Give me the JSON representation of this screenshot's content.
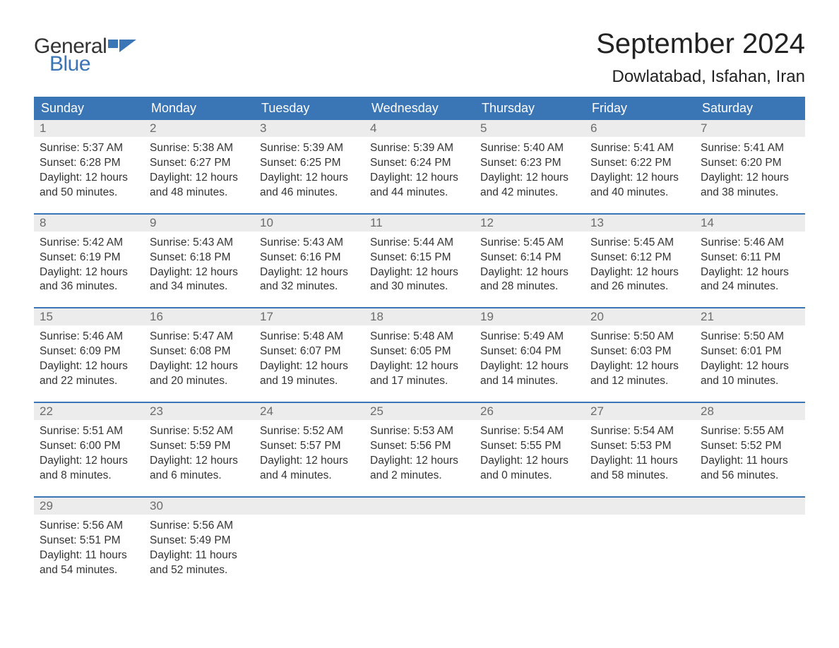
{
  "brand": {
    "word1": "General",
    "word2": "Blue",
    "accent_color": "#3a75b5",
    "text_color": "#333333"
  },
  "title": "September 2024",
  "location": "Dowlatabad, Isfahan, Iran",
  "layout": {
    "header_bg": "#3a75b5",
    "header_text_color": "#ffffff",
    "daynum_bg": "#ececec",
    "daynum_color": "#6b6b6b",
    "body_text_color": "#333333",
    "week_border_color": "#3a75b5",
    "font_family": "Arial",
    "title_fontsize": 40,
    "location_fontsize": 24,
    "weekday_fontsize": 18,
    "body_fontsize": 15.5
  },
  "weekdays": [
    "Sunday",
    "Monday",
    "Tuesday",
    "Wednesday",
    "Thursday",
    "Friday",
    "Saturday"
  ],
  "days": [
    {
      "n": "1",
      "sunrise": "Sunrise: 5:37 AM",
      "sunset": "Sunset: 6:28 PM",
      "d1": "Daylight: 12 hours",
      "d2": "and 50 minutes."
    },
    {
      "n": "2",
      "sunrise": "Sunrise: 5:38 AM",
      "sunset": "Sunset: 6:27 PM",
      "d1": "Daylight: 12 hours",
      "d2": "and 48 minutes."
    },
    {
      "n": "3",
      "sunrise": "Sunrise: 5:39 AM",
      "sunset": "Sunset: 6:25 PM",
      "d1": "Daylight: 12 hours",
      "d2": "and 46 minutes."
    },
    {
      "n": "4",
      "sunrise": "Sunrise: 5:39 AM",
      "sunset": "Sunset: 6:24 PM",
      "d1": "Daylight: 12 hours",
      "d2": "and 44 minutes."
    },
    {
      "n": "5",
      "sunrise": "Sunrise: 5:40 AM",
      "sunset": "Sunset: 6:23 PM",
      "d1": "Daylight: 12 hours",
      "d2": "and 42 minutes."
    },
    {
      "n": "6",
      "sunrise": "Sunrise: 5:41 AM",
      "sunset": "Sunset: 6:22 PM",
      "d1": "Daylight: 12 hours",
      "d2": "and 40 minutes."
    },
    {
      "n": "7",
      "sunrise": "Sunrise: 5:41 AM",
      "sunset": "Sunset: 6:20 PM",
      "d1": "Daylight: 12 hours",
      "d2": "and 38 minutes."
    },
    {
      "n": "8",
      "sunrise": "Sunrise: 5:42 AM",
      "sunset": "Sunset: 6:19 PM",
      "d1": "Daylight: 12 hours",
      "d2": "and 36 minutes."
    },
    {
      "n": "9",
      "sunrise": "Sunrise: 5:43 AM",
      "sunset": "Sunset: 6:18 PM",
      "d1": "Daylight: 12 hours",
      "d2": "and 34 minutes."
    },
    {
      "n": "10",
      "sunrise": "Sunrise: 5:43 AM",
      "sunset": "Sunset: 6:16 PM",
      "d1": "Daylight: 12 hours",
      "d2": "and 32 minutes."
    },
    {
      "n": "11",
      "sunrise": "Sunrise: 5:44 AM",
      "sunset": "Sunset: 6:15 PM",
      "d1": "Daylight: 12 hours",
      "d2": "and 30 minutes."
    },
    {
      "n": "12",
      "sunrise": "Sunrise: 5:45 AM",
      "sunset": "Sunset: 6:14 PM",
      "d1": "Daylight: 12 hours",
      "d2": "and 28 minutes."
    },
    {
      "n": "13",
      "sunrise": "Sunrise: 5:45 AM",
      "sunset": "Sunset: 6:12 PM",
      "d1": "Daylight: 12 hours",
      "d2": "and 26 minutes."
    },
    {
      "n": "14",
      "sunrise": "Sunrise: 5:46 AM",
      "sunset": "Sunset: 6:11 PM",
      "d1": "Daylight: 12 hours",
      "d2": "and 24 minutes."
    },
    {
      "n": "15",
      "sunrise": "Sunrise: 5:46 AM",
      "sunset": "Sunset: 6:09 PM",
      "d1": "Daylight: 12 hours",
      "d2": "and 22 minutes."
    },
    {
      "n": "16",
      "sunrise": "Sunrise: 5:47 AM",
      "sunset": "Sunset: 6:08 PM",
      "d1": "Daylight: 12 hours",
      "d2": "and 20 minutes."
    },
    {
      "n": "17",
      "sunrise": "Sunrise: 5:48 AM",
      "sunset": "Sunset: 6:07 PM",
      "d1": "Daylight: 12 hours",
      "d2": "and 19 minutes."
    },
    {
      "n": "18",
      "sunrise": "Sunrise: 5:48 AM",
      "sunset": "Sunset: 6:05 PM",
      "d1": "Daylight: 12 hours",
      "d2": "and 17 minutes."
    },
    {
      "n": "19",
      "sunrise": "Sunrise: 5:49 AM",
      "sunset": "Sunset: 6:04 PM",
      "d1": "Daylight: 12 hours",
      "d2": "and 14 minutes."
    },
    {
      "n": "20",
      "sunrise": "Sunrise: 5:50 AM",
      "sunset": "Sunset: 6:03 PM",
      "d1": "Daylight: 12 hours",
      "d2": "and 12 minutes."
    },
    {
      "n": "21",
      "sunrise": "Sunrise: 5:50 AM",
      "sunset": "Sunset: 6:01 PM",
      "d1": "Daylight: 12 hours",
      "d2": "and 10 minutes."
    },
    {
      "n": "22",
      "sunrise": "Sunrise: 5:51 AM",
      "sunset": "Sunset: 6:00 PM",
      "d1": "Daylight: 12 hours",
      "d2": "and 8 minutes."
    },
    {
      "n": "23",
      "sunrise": "Sunrise: 5:52 AM",
      "sunset": "Sunset: 5:59 PM",
      "d1": "Daylight: 12 hours",
      "d2": "and 6 minutes."
    },
    {
      "n": "24",
      "sunrise": "Sunrise: 5:52 AM",
      "sunset": "Sunset: 5:57 PM",
      "d1": "Daylight: 12 hours",
      "d2": "and 4 minutes."
    },
    {
      "n": "25",
      "sunrise": "Sunrise: 5:53 AM",
      "sunset": "Sunset: 5:56 PM",
      "d1": "Daylight: 12 hours",
      "d2": "and 2 minutes."
    },
    {
      "n": "26",
      "sunrise": "Sunrise: 5:54 AM",
      "sunset": "Sunset: 5:55 PM",
      "d1": "Daylight: 12 hours",
      "d2": "and 0 minutes."
    },
    {
      "n": "27",
      "sunrise": "Sunrise: 5:54 AM",
      "sunset": "Sunset: 5:53 PM",
      "d1": "Daylight: 11 hours",
      "d2": "and 58 minutes."
    },
    {
      "n": "28",
      "sunrise": "Sunrise: 5:55 AM",
      "sunset": "Sunset: 5:52 PM",
      "d1": "Daylight: 11 hours",
      "d2": "and 56 minutes."
    },
    {
      "n": "29",
      "sunrise": "Sunrise: 5:56 AM",
      "sunset": "Sunset: 5:51 PM",
      "d1": "Daylight: 11 hours",
      "d2": "and 54 minutes."
    },
    {
      "n": "30",
      "sunrise": "Sunrise: 5:56 AM",
      "sunset": "Sunset: 5:49 PM",
      "d1": "Daylight: 11 hours",
      "d2": "and 52 minutes."
    }
  ]
}
